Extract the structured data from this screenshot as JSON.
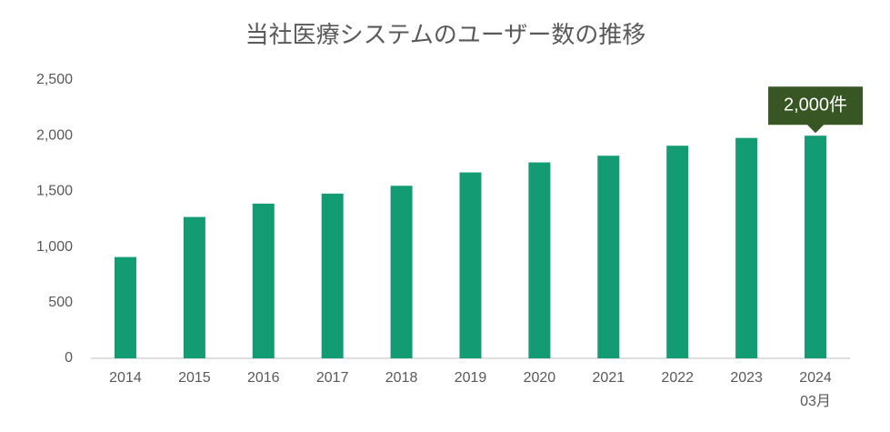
{
  "chart_data": {
    "type": "bar",
    "title": "当社医療システムのユーザー数の推移",
    "categories": [
      "2014",
      "2015",
      "2016",
      "2017",
      "2018",
      "2019",
      "2020",
      "2021",
      "2022",
      "2023",
      "2024\n03月"
    ],
    "values": [
      910,
      1270,
      1390,
      1480,
      1550,
      1670,
      1760,
      1820,
      1910,
      1980,
      2000
    ],
    "value_labels": [
      null,
      null,
      null,
      null,
      null,
      null,
      null,
      null,
      null,
      null,
      "2,000件"
    ],
    "color": "#139b74",
    "label_color": "#375623",
    "ylim": [
      0,
      2500
    ],
    "yticks": [
      0,
      500,
      {
        "value": 1000,
        "label": "1,000"
      },
      {
        "value": 1500,
        "label": "1,500"
      },
      {
        "value": 2000,
        "label": "2,000"
      },
      {
        "value": 2500,
        "label": "2,500"
      }
    ],
    "grid": false
  }
}
